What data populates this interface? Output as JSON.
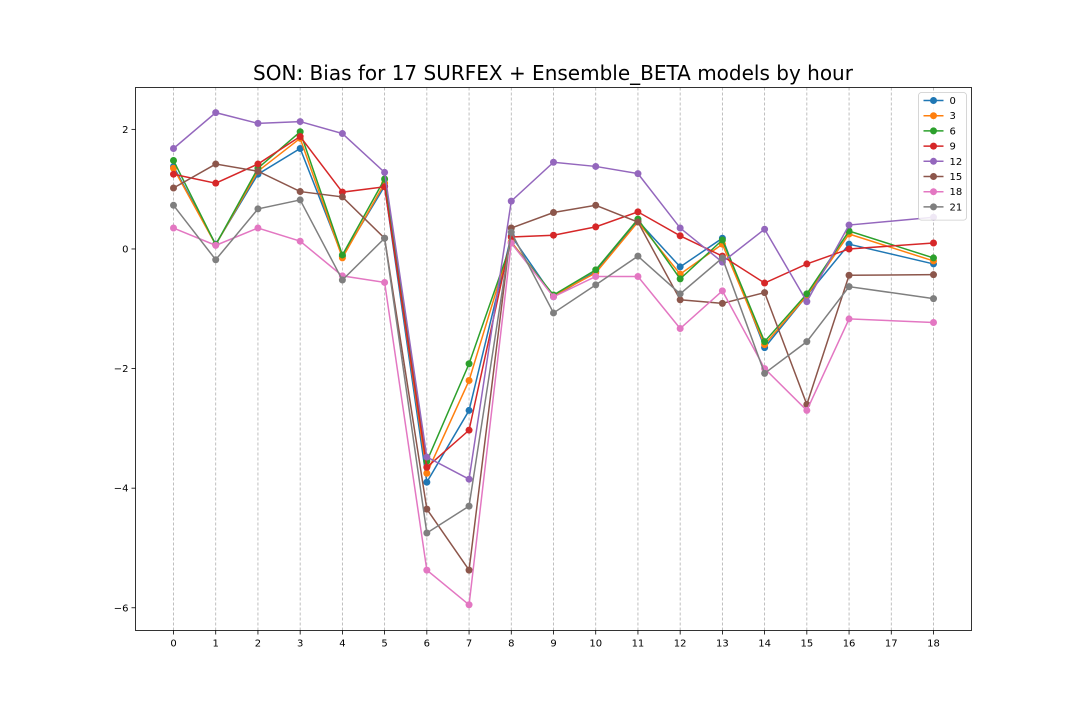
{
  "chart_data": {
    "type": "line",
    "title": "SON: Bias for 17 SURFEX + Ensemble_BETA models by hour",
    "xlabel": "",
    "ylabel": "",
    "x": [
      0,
      1,
      2,
      3,
      4,
      5,
      6,
      7,
      8,
      9,
      10,
      11,
      12,
      13,
      14,
      15,
      16,
      17,
      18
    ],
    "xticks": [
      "0",
      "1",
      "2",
      "3",
      "4",
      "5",
      "6",
      "7",
      "8",
      "9",
      "10",
      "11",
      "12",
      "13",
      "14",
      "15",
      "16",
      "17",
      "18"
    ],
    "yticks": [
      2,
      0,
      -2,
      -4,
      -6
    ],
    "ytick_labels": [
      "2",
      "0",
      "−2",
      "−4",
      "−6"
    ],
    "xlim": [
      -0.9,
      18.9
    ],
    "ylim": [
      -6.38,
      2.7
    ],
    "grid": "x-dashed",
    "legend_position": "top-right",
    "series": [
      {
        "name": "0",
        "color": "#1f77b4",
        "x": [
          0,
          1,
          2,
          3,
          4,
          5,
          6,
          7,
          8,
          9,
          10,
          11,
          12,
          13,
          14,
          15,
          16,
          18
        ],
        "values": [
          1.38,
          0.08,
          1.25,
          1.68,
          -0.12,
          1.05,
          -3.9,
          -2.7,
          0.22,
          -0.8,
          -0.38,
          0.47,
          -0.3,
          0.18,
          -1.65,
          -0.78,
          0.08,
          -0.25
        ]
      },
      {
        "name": "3",
        "color": "#ff7f0e",
        "x": [
          0,
          1,
          2,
          3,
          4,
          5,
          6,
          7,
          8,
          9,
          10,
          11,
          12,
          13,
          14,
          15,
          16,
          18
        ],
        "values": [
          1.35,
          0.07,
          1.3,
          1.85,
          -0.15,
          1.1,
          -3.75,
          -2.2,
          0.12,
          -0.78,
          -0.4,
          0.45,
          -0.42,
          0.08,
          -1.6,
          -0.78,
          0.25,
          -0.2
        ]
      },
      {
        "name": "6",
        "color": "#2ca02c",
        "x": [
          0,
          1,
          2,
          3,
          4,
          5,
          6,
          7,
          8,
          9,
          10,
          11,
          12,
          13,
          14,
          15,
          16,
          18
        ],
        "values": [
          1.48,
          0.07,
          1.35,
          1.96,
          -0.1,
          1.17,
          -3.55,
          -1.92,
          0.1,
          -0.77,
          -0.35,
          0.5,
          -0.5,
          0.15,
          -1.55,
          -0.75,
          0.3,
          -0.15
        ]
      },
      {
        "name": "9",
        "color": "#d62728",
        "x": [
          0,
          1,
          2,
          3,
          4,
          5,
          6,
          7,
          8,
          9,
          10,
          11,
          12,
          13,
          14,
          15,
          16,
          18
        ],
        "values": [
          1.25,
          1.1,
          1.42,
          1.88,
          0.95,
          1.04,
          -3.65,
          -3.03,
          0.2,
          0.23,
          0.37,
          0.62,
          0.22,
          -0.12,
          -0.57,
          -0.25,
          0.0,
          0.1
        ]
      },
      {
        "name": "12",
        "color": "#9467bd",
        "x": [
          0,
          1,
          2,
          3,
          4,
          5,
          6,
          7,
          8,
          9,
          10,
          11,
          12,
          13,
          14,
          15,
          16,
          18
        ],
        "values": [
          1.68,
          2.28,
          2.1,
          2.13,
          1.93,
          1.28,
          -3.48,
          -3.85,
          0.8,
          1.45,
          1.38,
          1.26,
          0.35,
          -0.22,
          0.33,
          -0.88,
          0.4,
          0.53
        ]
      },
      {
        "name": "15",
        "color": "#8c564b",
        "x": [
          0,
          1,
          2,
          3,
          4,
          5,
          6,
          7,
          8,
          9,
          10,
          11,
          12,
          13,
          14,
          15,
          16,
          18
        ],
        "values": [
          1.02,
          1.42,
          1.3,
          0.96,
          0.87,
          0.18,
          -4.35,
          -5.37,
          0.35,
          0.61,
          0.73,
          0.45,
          -0.85,
          -0.91,
          -0.73,
          -2.6,
          -0.44,
          -0.43
        ]
      },
      {
        "name": "18",
        "color": "#e377c2",
        "x": [
          0,
          1,
          2,
          3,
          4,
          5,
          6,
          7,
          8,
          9,
          10,
          11,
          12,
          13,
          14,
          15,
          16,
          18
        ],
        "values": [
          0.35,
          0.06,
          0.35,
          0.13,
          -0.45,
          -0.56,
          -5.37,
          -5.95,
          0.1,
          -0.8,
          -0.46,
          -0.46,
          -1.33,
          -0.7,
          -2.0,
          -2.7,
          -1.17,
          -1.23
        ]
      },
      {
        "name": "21",
        "color": "#7f7f7f",
        "x": [
          0,
          1,
          2,
          3,
          4,
          5,
          6,
          7,
          8,
          9,
          10,
          11,
          12,
          13,
          14,
          15,
          16,
          18
        ],
        "values": [
          0.73,
          -0.18,
          0.67,
          0.82,
          -0.52,
          0.18,
          -4.75,
          -4.3,
          0.28,
          -1.07,
          -0.6,
          -0.12,
          -0.75,
          -0.15,
          -2.08,
          -1.55,
          -0.63,
          -0.83
        ]
      }
    ]
  }
}
